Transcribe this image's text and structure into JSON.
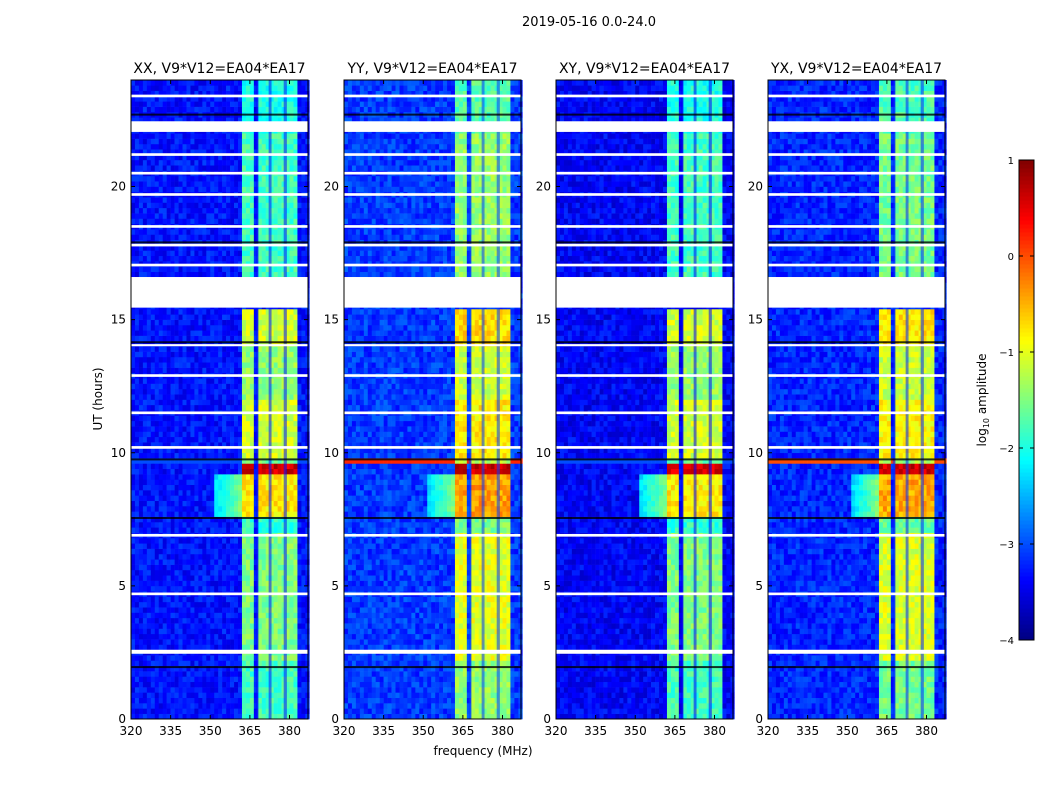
{
  "chart_data": {
    "type": "heatmap",
    "title": "2019-05-16 0.0-24.0",
    "xlabel": "frequency (MHz)",
    "ylabel": "UT (hours)",
    "xlim": [
      320,
      387
    ],
    "ylim": [
      0,
      24
    ],
    "xticks": [
      "320",
      "335",
      "350",
      "365",
      "380"
    ],
    "xtick_values": [
      320,
      335,
      350,
      365,
      380
    ],
    "yticks": [
      "0",
      "5",
      "10",
      "15",
      "20"
    ],
    "ytick_values": [
      0,
      5,
      10,
      15,
      20
    ],
    "colorbar": {
      "label_main": "log",
      "label_sub": "10",
      "label_tail": " amplitude",
      "range": [
        -4,
        1
      ],
      "ticks": [
        "−4",
        "−3",
        "−2",
        "−1",
        "0",
        "1"
      ],
      "tick_values": [
        -4,
        -3,
        -2,
        -1,
        0,
        1
      ],
      "colormap": "jet"
    },
    "sub_bands_mhz": [
      [
        362.6,
        367.2
      ],
      [
        368.3,
        372.1
      ],
      [
        373.2,
        377.8
      ],
      [
        379.0,
        383.0
      ]
    ],
    "flagged_hours": [
      [
        15.45,
        16.6
      ],
      [
        22.05,
        22.45
      ],
      [
        2.45,
        2.6
      ],
      [
        4.65,
        4.75
      ],
      [
        6.85,
        6.95
      ],
      [
        10.15,
        10.25
      ],
      [
        11.45,
        11.55
      ],
      [
        12.85,
        12.95
      ],
      [
        14.0,
        14.08
      ],
      [
        17.0,
        17.1
      ],
      [
        17.75,
        17.85
      ],
      [
        18.45,
        18.55
      ],
      [
        19.65,
        19.75
      ],
      [
        20.45,
        20.55
      ],
      [
        21.15,
        21.25
      ],
      [
        23.35,
        23.45
      ]
    ],
    "dropout_hours": [
      1.95,
      7.55,
      9.75,
      14.15,
      17.9,
      22.7
    ],
    "panels": [
      {
        "title": "XX, V9*V12=EA04*EA17",
        "background": -3.3,
        "band_offset": 0.0,
        "rfi_row": -3.0,
        "band_levels": [
          [
            0,
            2.3,
            -1.8
          ],
          [
            2.3,
            7.0,
            -1.5
          ],
          [
            7.0,
            7.6,
            -1.9
          ],
          [
            7.6,
            9.2,
            -0.8
          ],
          [
            9.2,
            9.65,
            0.6
          ],
          [
            9.65,
            9.8,
            -1.6
          ],
          [
            9.8,
            12.0,
            -1.1
          ],
          [
            12.0,
            14.0,
            -1.4
          ],
          [
            14.0,
            15.4,
            -1.1
          ],
          [
            16.6,
            22.0,
            -1.8
          ],
          [
            22.0,
            24.0,
            -2.0
          ]
        ]
      },
      {
        "title": "YY, V9*V12=EA04*EA17",
        "background": -3.1,
        "band_offset": 0.4,
        "rfi_row": 0.2,
        "band_levels": [
          [
            0,
            2.3,
            -1.6
          ],
          [
            2.3,
            7.0,
            -1.2
          ],
          [
            7.0,
            7.6,
            -1.7
          ],
          [
            7.6,
            9.2,
            -0.6
          ],
          [
            9.2,
            9.65,
            0.6
          ],
          [
            9.65,
            9.8,
            -1.5
          ],
          [
            9.8,
            12.0,
            -1.0
          ],
          [
            12.0,
            14.0,
            -1.3
          ],
          [
            14.0,
            15.4,
            -0.9
          ],
          [
            16.6,
            22.0,
            -1.6
          ],
          [
            22.0,
            24.0,
            -1.9
          ]
        ]
      },
      {
        "title": "XY, V9*V12=EA04*EA17",
        "background": -3.4,
        "band_offset": 0.0,
        "rfi_row": -3.0,
        "band_levels": [
          [
            0,
            2.3,
            -1.8
          ],
          [
            2.3,
            7.0,
            -1.5
          ],
          [
            7.0,
            7.6,
            -1.9
          ],
          [
            7.6,
            9.2,
            -0.8
          ],
          [
            9.2,
            9.65,
            0.6
          ],
          [
            9.65,
            9.8,
            -1.6
          ],
          [
            9.8,
            12.0,
            -1.1
          ],
          [
            12.0,
            14.0,
            -1.4
          ],
          [
            14.0,
            15.4,
            -1.1
          ],
          [
            16.6,
            22.0,
            -1.8
          ],
          [
            22.0,
            24.0,
            -2.0
          ]
        ]
      },
      {
        "title": "YX, V9*V12=EA04*EA17",
        "background": -3.2,
        "band_offset": 0.3,
        "rfi_row": 0.0,
        "band_levels": [
          [
            0,
            2.3,
            -1.7
          ],
          [
            2.3,
            7.0,
            -1.2
          ],
          [
            7.0,
            7.6,
            -1.8
          ],
          [
            7.6,
            9.2,
            -0.6
          ],
          [
            9.2,
            9.65,
            0.6
          ],
          [
            9.65,
            9.8,
            -1.5
          ],
          [
            9.8,
            12.0,
            -1.0
          ],
          [
            12.0,
            14.0,
            -1.3
          ],
          [
            14.0,
            15.4,
            -0.9
          ],
          [
            16.6,
            22.0,
            -1.7
          ],
          [
            22.0,
            24.0,
            -1.9
          ]
        ]
      }
    ]
  }
}
